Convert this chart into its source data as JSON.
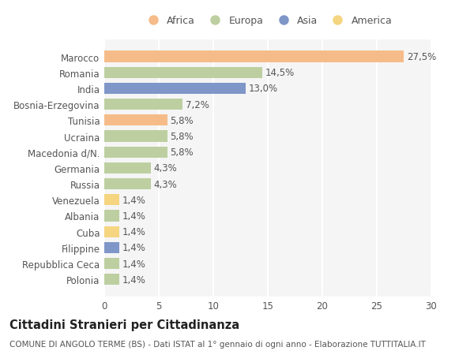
{
  "countries": [
    "Polonia",
    "Repubblica Ceca",
    "Filippine",
    "Cuba",
    "Albania",
    "Venezuela",
    "Russia",
    "Germania",
    "Macedonia d/N.",
    "Ucraina",
    "Tunisia",
    "Bosnia-Erzegovina",
    "India",
    "Romania",
    "Marocco"
  ],
  "values": [
    1.4,
    1.4,
    1.4,
    1.4,
    1.4,
    1.4,
    4.3,
    4.3,
    5.8,
    5.8,
    5.8,
    7.2,
    13.0,
    14.5,
    27.5
  ],
  "labels": [
    "1,4%",
    "1,4%",
    "1,4%",
    "1,4%",
    "1,4%",
    "1,4%",
    "4,3%",
    "4,3%",
    "5,8%",
    "5,8%",
    "5,8%",
    "7,2%",
    "13,0%",
    "14,5%",
    "27,5%"
  ],
  "continents": [
    "Europa",
    "Europa",
    "Asia",
    "America",
    "Europa",
    "America",
    "Europa",
    "Europa",
    "Europa",
    "Europa",
    "Africa",
    "Europa",
    "Asia",
    "Europa",
    "Africa"
  ],
  "colors": {
    "Africa": "#F5BC8A",
    "Europa": "#BDCFA0",
    "Asia": "#7F96C8",
    "America": "#F5D580"
  },
  "legend_order": [
    "Africa",
    "Europa",
    "Asia",
    "America"
  ],
  "title": "Cittadini Stranieri per Cittadinanza",
  "subtitle": "COMUNE DI ANGOLO TERME (BS) - Dati ISTAT al 1° gennaio di ogni anno - Elaborazione TUTTITALIA.IT",
  "xlim": [
    0,
    30
  ],
  "xticks": [
    0,
    5,
    10,
    15,
    20,
    25,
    30
  ],
  "bg_color": "#f5f5f5",
  "plot_bg_color": "#f5f5f5",
  "bar_height": 0.7,
  "label_fontsize": 8.5,
  "title_fontsize": 10.5,
  "subtitle_fontsize": 7.5,
  "tick_fontsize": 8.5
}
